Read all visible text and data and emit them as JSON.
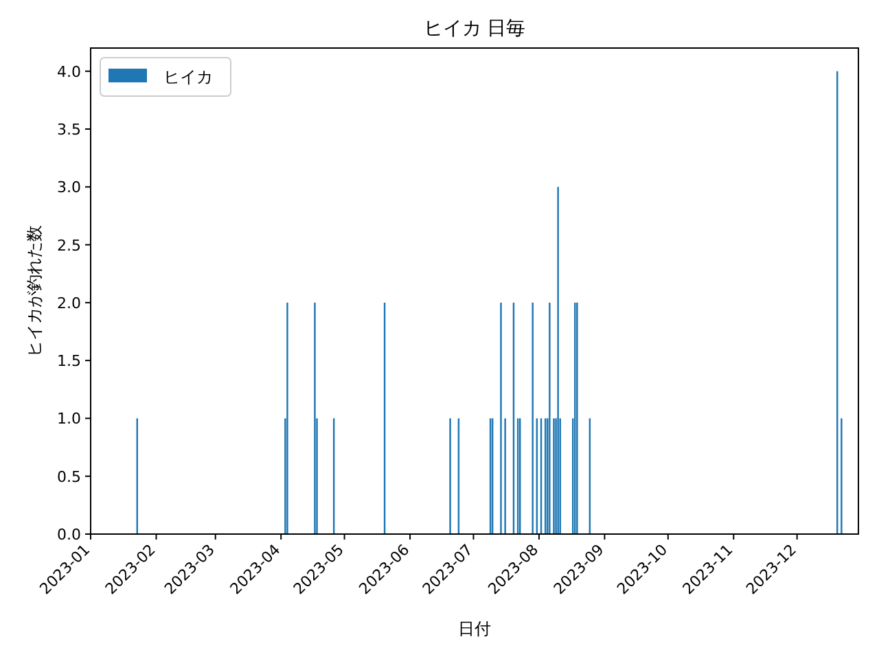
{
  "chart_data": {
    "type": "bar",
    "title": "ヒイカ 日毎",
    "xlabel": "日付",
    "ylabel": "ヒイカが釣れた数",
    "x": [
      "2023-01-23",
      "2023-04-03",
      "2023-04-04",
      "2023-04-17",
      "2023-04-18",
      "2023-04-26",
      "2023-05-20",
      "2023-06-20",
      "2023-06-24",
      "2023-07-09",
      "2023-07-10",
      "2023-07-14",
      "2023-07-16",
      "2023-07-20",
      "2023-07-22",
      "2023-07-23",
      "2023-07-29",
      "2023-07-31",
      "2023-08-02",
      "2023-08-04",
      "2023-08-05",
      "2023-08-06",
      "2023-08-08",
      "2023-08-09",
      "2023-08-10",
      "2023-08-11",
      "2023-08-17",
      "2023-08-18",
      "2023-08-19",
      "2023-08-25",
      "2023-12-20",
      "2023-12-22"
    ],
    "series": [
      {
        "name": "ヒイカ",
        "color": "#1f77b4",
        "values": [
          1,
          1,
          2,
          2,
          1,
          1,
          2,
          1,
          1,
          1,
          1,
          2,
          1,
          2,
          1,
          1,
          2,
          1,
          1,
          1,
          1,
          2,
          1,
          1,
          3,
          1,
          1,
          2,
          2,
          1,
          4,
          1
        ]
      }
    ],
    "xlim": [
      "2023-01-01",
      "2023-12-30"
    ],
    "xticks": [
      {
        "value": "2023-01-01",
        "label": "2023-01"
      },
      {
        "value": "2023-02-01",
        "label": "2023-02"
      },
      {
        "value": "2023-03-01",
        "label": "2023-03"
      },
      {
        "value": "2023-04-01",
        "label": "2023-04"
      },
      {
        "value": "2023-05-01",
        "label": "2023-05"
      },
      {
        "value": "2023-06-01",
        "label": "2023-06"
      },
      {
        "value": "2023-07-01",
        "label": "2023-07"
      },
      {
        "value": "2023-08-01",
        "label": "2023-08"
      },
      {
        "value": "2023-09-01",
        "label": "2023-09"
      },
      {
        "value": "2023-10-01",
        "label": "2023-10"
      },
      {
        "value": "2023-11-01",
        "label": "2023-11"
      },
      {
        "value": "2023-12-01",
        "label": "2023-12"
      }
    ],
    "ylim": [
      0,
      4.2
    ],
    "yticks": [
      {
        "value": 0,
        "label": "0.0"
      },
      {
        "value": 0.5,
        "label": "0.5"
      },
      {
        "value": 1,
        "label": "1.0"
      },
      {
        "value": 1.5,
        "label": "1.5"
      },
      {
        "value": 2,
        "label": "2.0"
      },
      {
        "value": 2.5,
        "label": "2.5"
      },
      {
        "value": 3,
        "label": "3.0"
      },
      {
        "value": 3.5,
        "label": "3.5"
      },
      {
        "value": 4,
        "label": "4.0"
      }
    ],
    "legend": "top left"
  }
}
